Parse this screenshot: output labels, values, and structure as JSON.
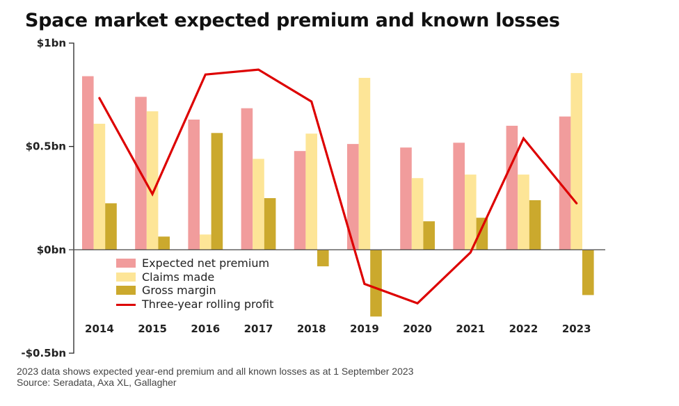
{
  "chart_data": {
    "type": "bar",
    "title": "Space market expected premium and known losses",
    "xlabel": "",
    "ylabel": "",
    "unit": "$bn",
    "ylim": [
      -0.5,
      1.0
    ],
    "yticks": [
      {
        "value": 1.0,
        "label": "$1bn"
      },
      {
        "value": 0.5,
        "label": "$0.5bn"
      },
      {
        "value": 0.0,
        "label": "$0bn"
      },
      {
        "value": -0.5,
        "label": "-$0.5bn"
      }
    ],
    "grid": false,
    "legend_position": "bottom-left inside plot",
    "categories": [
      "2014",
      "2015",
      "2016",
      "2017",
      "2018",
      "2019",
      "2020",
      "2021",
      "2022",
      "2023"
    ],
    "series": [
      {
        "name": "Expected net premium",
        "kind": "bar",
        "color": "#F19C9C",
        "values": [
          0.84,
          0.74,
          0.63,
          0.685,
          0.478,
          0.512,
          0.495,
          0.518,
          0.6,
          0.645
        ]
      },
      {
        "name": "Claims made",
        "kind": "bar",
        "color": "#FDE597",
        "values": [
          0.61,
          0.67,
          0.074,
          0.44,
          0.562,
          0.832,
          0.347,
          0.364,
          0.364,
          0.855
        ]
      },
      {
        "name": "Gross margin",
        "kind": "bar",
        "color": "#CBA92D",
        "values": [
          0.225,
          0.064,
          0.565,
          0.25,
          -0.08,
          -0.323,
          0.138,
          0.155,
          0.24,
          -0.219
        ]
      },
      {
        "name": "Three-year rolling profit",
        "kind": "line",
        "color": "#DD0000",
        "values": [
          0.734,
          0.27,
          0.848,
          0.872,
          0.717,
          -0.165,
          -0.259,
          -0.013,
          0.539,
          0.225
        ]
      }
    ]
  },
  "footer": {
    "note": "2023 data shows expected year-end premium and all known losses as at 1 September 2023",
    "source": "Source: Seradata, Axa XL, Gallagher"
  }
}
